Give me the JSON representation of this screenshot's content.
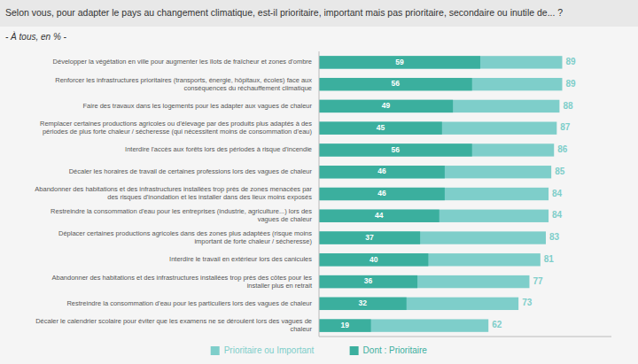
{
  "chart_data": {
    "type": "bar",
    "orientation": "horizontal",
    "stacked": false,
    "title": "Selon vous, pour adapter le pays au changement climatique, est-il prioritaire, important mais pas prioritaire, secondaire ou inutile de... ?",
    "subtitle": "- À tous, en % -",
    "categories": [
      "Développer la végétation en ville pour augmenter les îlots de fraîcheur et zones d'ombre",
      "Renforcer les infrastructures prioritaires (transports, énergie, hôpitaux, écoles) face aux\nconséquences du réchauffement climatique",
      "Faire des travaux dans les logements pour les adapter aux vagues de chaleur",
      "Remplacer certaines productions agricoles ou d'élevage par des produits plus adaptés à des\npériodes de plus forte chaleur / sécheresse (qui nécessitent moins de consommation d'eau)",
      "Interdire l'accès aux forêts lors des périodes à risque d'incendie",
      "Décaler les horaires de travail de certaines professions lors des vagues de chaleur",
      "Abandonner des habitations et des infrastructures installées trop près de zones menacées par\ndes risques d'inondation et les installer dans des lieux moins exposés",
      "Restreindre la consommation d'eau pour les entreprises (industrie, agriculture...) lors des\nvagues de chaleur",
      "Déplacer certaines productions agricoles dans des zones plus adaptées (risque moins\nimportant de forte chaleur / sécheresse)",
      "Interdire le travail en extérieur lors des canicules",
      "Abandonner des habitations et des infrastructures installées trop près des côtes pour les\ninstaller plus en retrait",
      "Restreindre la consommation d'eau pour les particuliers lors des vagues de chaleur",
      "Décaler le calendrier scolaire pour éviter que les examens ne se déroulent lors des vagues de\nchaleur"
    ],
    "series": [
      {
        "name": "Prioritaire ou Important",
        "color": "#7ECECA",
        "values": [
          89,
          89,
          88,
          87,
          86,
          85,
          84,
          84,
          83,
          81,
          77,
          73,
          62
        ]
      },
      {
        "name": "Dont : Prioritaire",
        "color": "#3BAF9E",
        "values": [
          59,
          56,
          49,
          45,
          56,
          46,
          46,
          44,
          37,
          40,
          36,
          32,
          19
        ]
      }
    ],
    "xlim": [
      0,
      107
    ],
    "grid": false,
    "data_labels": true,
    "tick_labels": "y"
  }
}
